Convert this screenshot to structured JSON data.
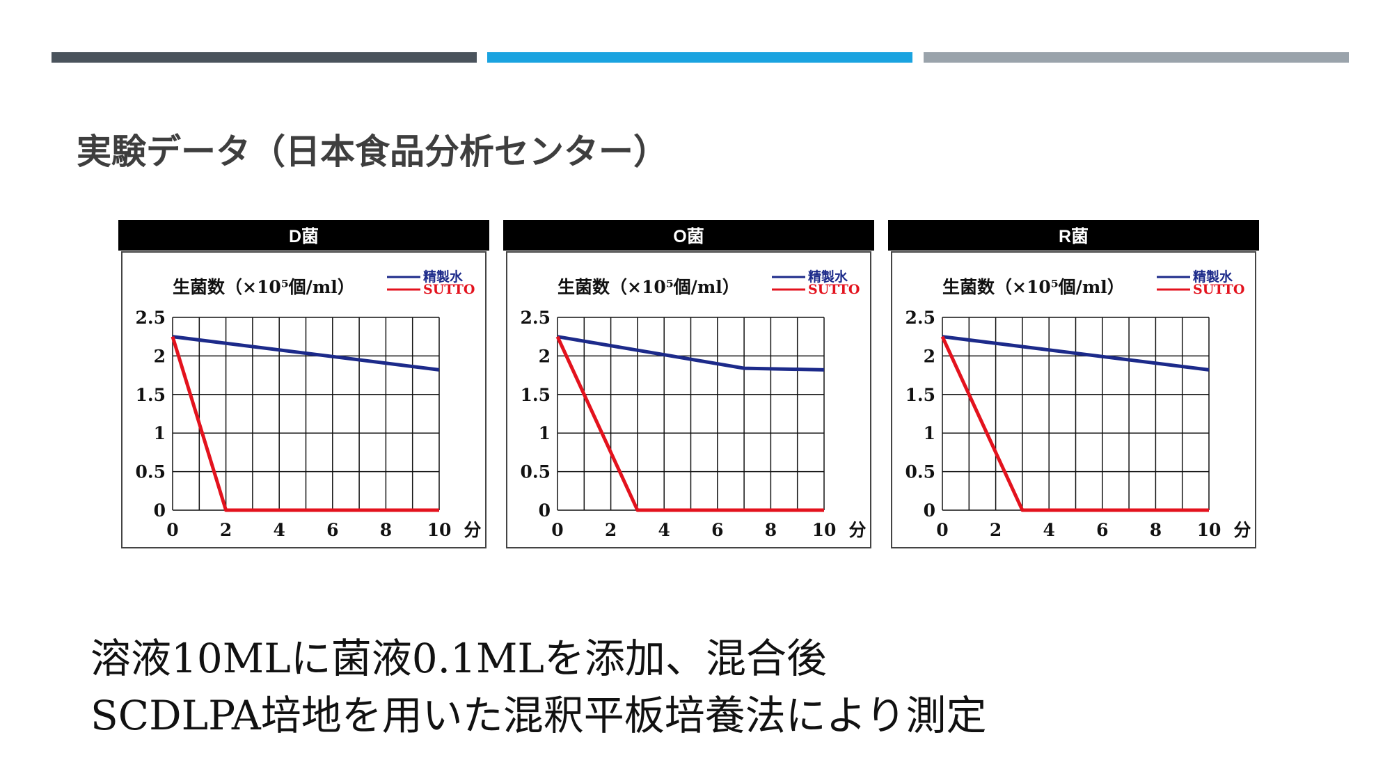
{
  "colors": {
    "bar_dark": "#4a535c",
    "bar_blue": "#1aa3e0",
    "bar_gray": "#9aa3ab",
    "series_purified_water": "#1c2a8a",
    "series_sutto": "#e3121d",
    "grid": "#111111"
  },
  "title": "実験データ（日本食品分析センター）",
  "caption": {
    "line1": "溶液10MLに菌液0.1MLを添加、混合後",
    "line2": "SCDLPA培地を用いた混釈平板培養法により測定"
  },
  "chart_data": [
    {
      "type": "line",
      "title": "D菌",
      "ylabel": "生菌数（×10⁵個/ml）",
      "xlabel": "分",
      "ylim": [
        0,
        2.5
      ],
      "xlim": [
        0,
        10
      ],
      "yticks": [
        "0",
        "0.5",
        "1",
        "1.5",
        "2",
        "2.5"
      ],
      "xticks": [
        "0",
        "2",
        "4",
        "6",
        "8",
        "10"
      ],
      "grid": true,
      "legend_position": "top-right",
      "series": [
        {
          "name": "精製水",
          "x": [
            0,
            10
          ],
          "y": [
            2.25,
            1.82
          ]
        },
        {
          "name": "SUTTO",
          "x": [
            0,
            2,
            10
          ],
          "y": [
            2.25,
            0,
            0
          ]
        }
      ]
    },
    {
      "type": "line",
      "title": "O菌",
      "ylabel": "生菌数（×10⁵個/ml）",
      "xlabel": "分",
      "ylim": [
        0,
        2.5
      ],
      "xlim": [
        0,
        10
      ],
      "yticks": [
        "0",
        "0.5",
        "1",
        "1.5",
        "2",
        "2.5"
      ],
      "xticks": [
        "0",
        "2",
        "4",
        "6",
        "8",
        "10"
      ],
      "grid": true,
      "legend_position": "top-right",
      "series": [
        {
          "name": "精製水",
          "x": [
            0,
            7,
            10
          ],
          "y": [
            2.25,
            1.84,
            1.82
          ]
        },
        {
          "name": "SUTTO",
          "x": [
            0,
            3,
            10
          ],
          "y": [
            2.25,
            0,
            0
          ]
        }
      ]
    },
    {
      "type": "line",
      "title": "R菌",
      "ylabel": "生菌数（×10⁵個/ml）",
      "xlabel": "分",
      "ylim": [
        0,
        2.5
      ],
      "xlim": [
        0,
        10
      ],
      "yticks": [
        "0",
        "0.5",
        "1",
        "1.5",
        "2",
        "2.5"
      ],
      "xticks": [
        "0",
        "2",
        "4",
        "6",
        "8",
        "10"
      ],
      "grid": true,
      "legend_position": "top-right",
      "series": [
        {
          "name": "精製水",
          "x": [
            0,
            10
          ],
          "y": [
            2.25,
            1.82
          ]
        },
        {
          "name": "SUTTO",
          "x": [
            0,
            3,
            10
          ],
          "y": [
            2.25,
            0,
            0
          ]
        }
      ]
    }
  ]
}
